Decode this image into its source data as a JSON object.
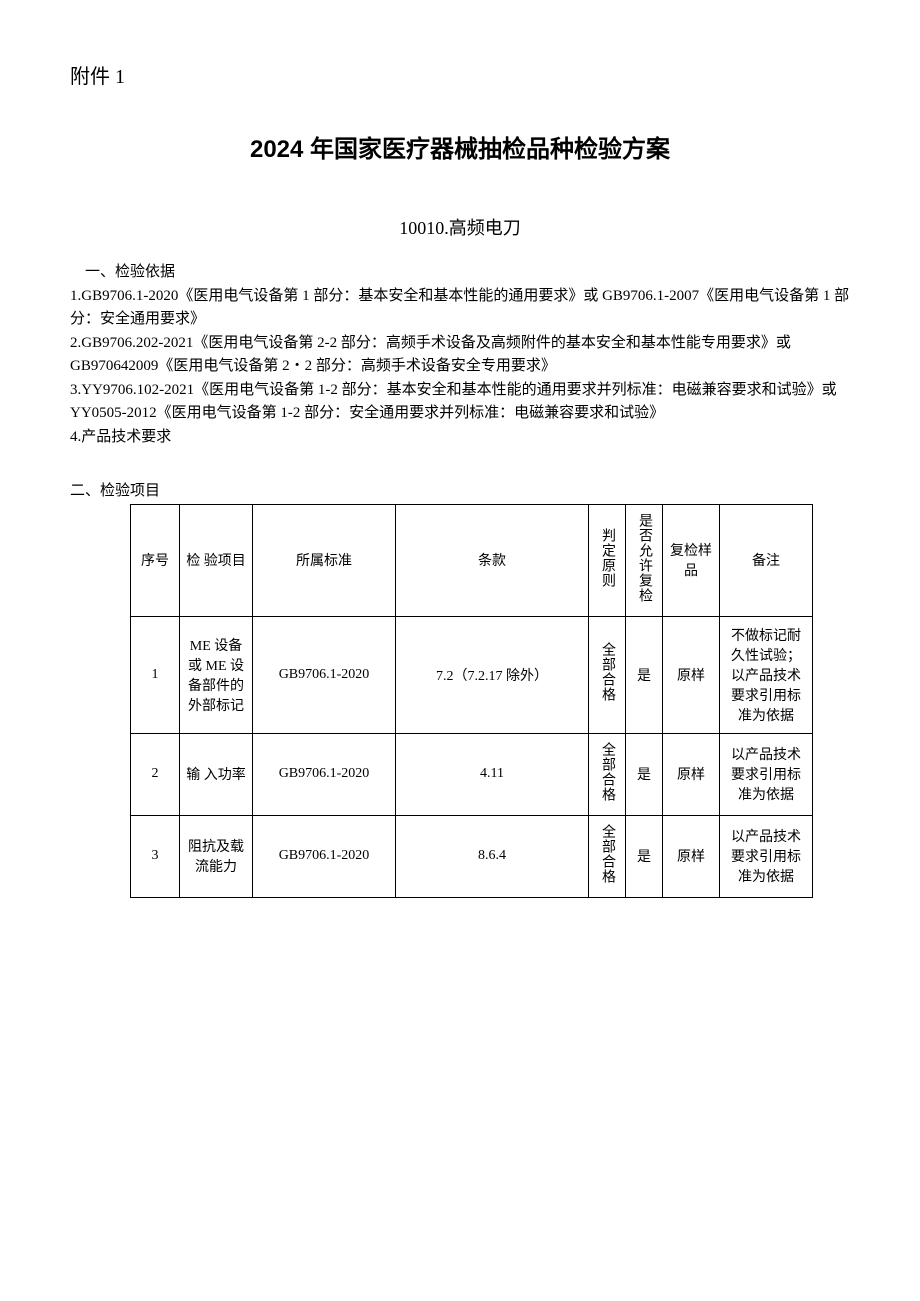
{
  "attachment": "附件 1",
  "title": "2024 年国家医疗器械抽检品种检验方案",
  "subtitle": "10010.高频电刀",
  "section1_header": "一、检验依据",
  "basis": [
    "1.GB9706.1-2020《医用电气设备第 1 部分：基本安全和基本性能的通用要求》或 GB9706.1-2007《医用电气设备第 1 部分：安全通用要求》",
    "2.GB9706.202-2021《医用电气设备第 2-2 部分：高频手术设备及高频附件的基本安全和基本性能专用要求》或 GB970642009《医用电气设备第 2・2 部分：高频手术设备安全专用要求》",
    "3.YY9706.102-2021《医用电气设备第 1-2 部分：基本安全和基本性能的通用要求并列标准：电磁兼容要求和试验》或 YY0505-2012《医用电气设备第 1-2 部分：安全通用要求并列标准：电磁兼容要求和试验》",
    "4.产品技术要求"
  ],
  "section2_header": "二、检验项目",
  "table": {
    "headers": {
      "idx": "序号",
      "item": "检 验项目",
      "std": "所属标准",
      "clause": "条款",
      "judge": "判定原则",
      "recheck": "是否允许复检",
      "sample": "复检样品",
      "remark": "备注"
    },
    "rows": [
      {
        "idx": "1",
        "item": "ME 设备或\nME 设备部件的外部标记",
        "std": "GB9706.1-2020",
        "clause": "7.2（7.2.17 除外）",
        "judge": "全部合格",
        "recheck": "是",
        "sample": "原样",
        "remark": "不做标记耐久性试验；以产品技术要求引用标准为依据"
      },
      {
        "idx": "2",
        "item": "输 入功率",
        "std": "GB9706.1-2020",
        "clause": "4.11",
        "judge": "全部合格",
        "recheck": "是",
        "sample": "原样",
        "remark": "以产品技术要求引用标准为依据"
      },
      {
        "idx": "3",
        "item": "阻抗及载流能力",
        "std": "GB9706.1-2020",
        "clause": "8.6.4",
        "judge": "全部合格",
        "recheck": "是",
        "sample": "原样",
        "remark": "以产品技术要求引用标准为依据"
      }
    ]
  }
}
